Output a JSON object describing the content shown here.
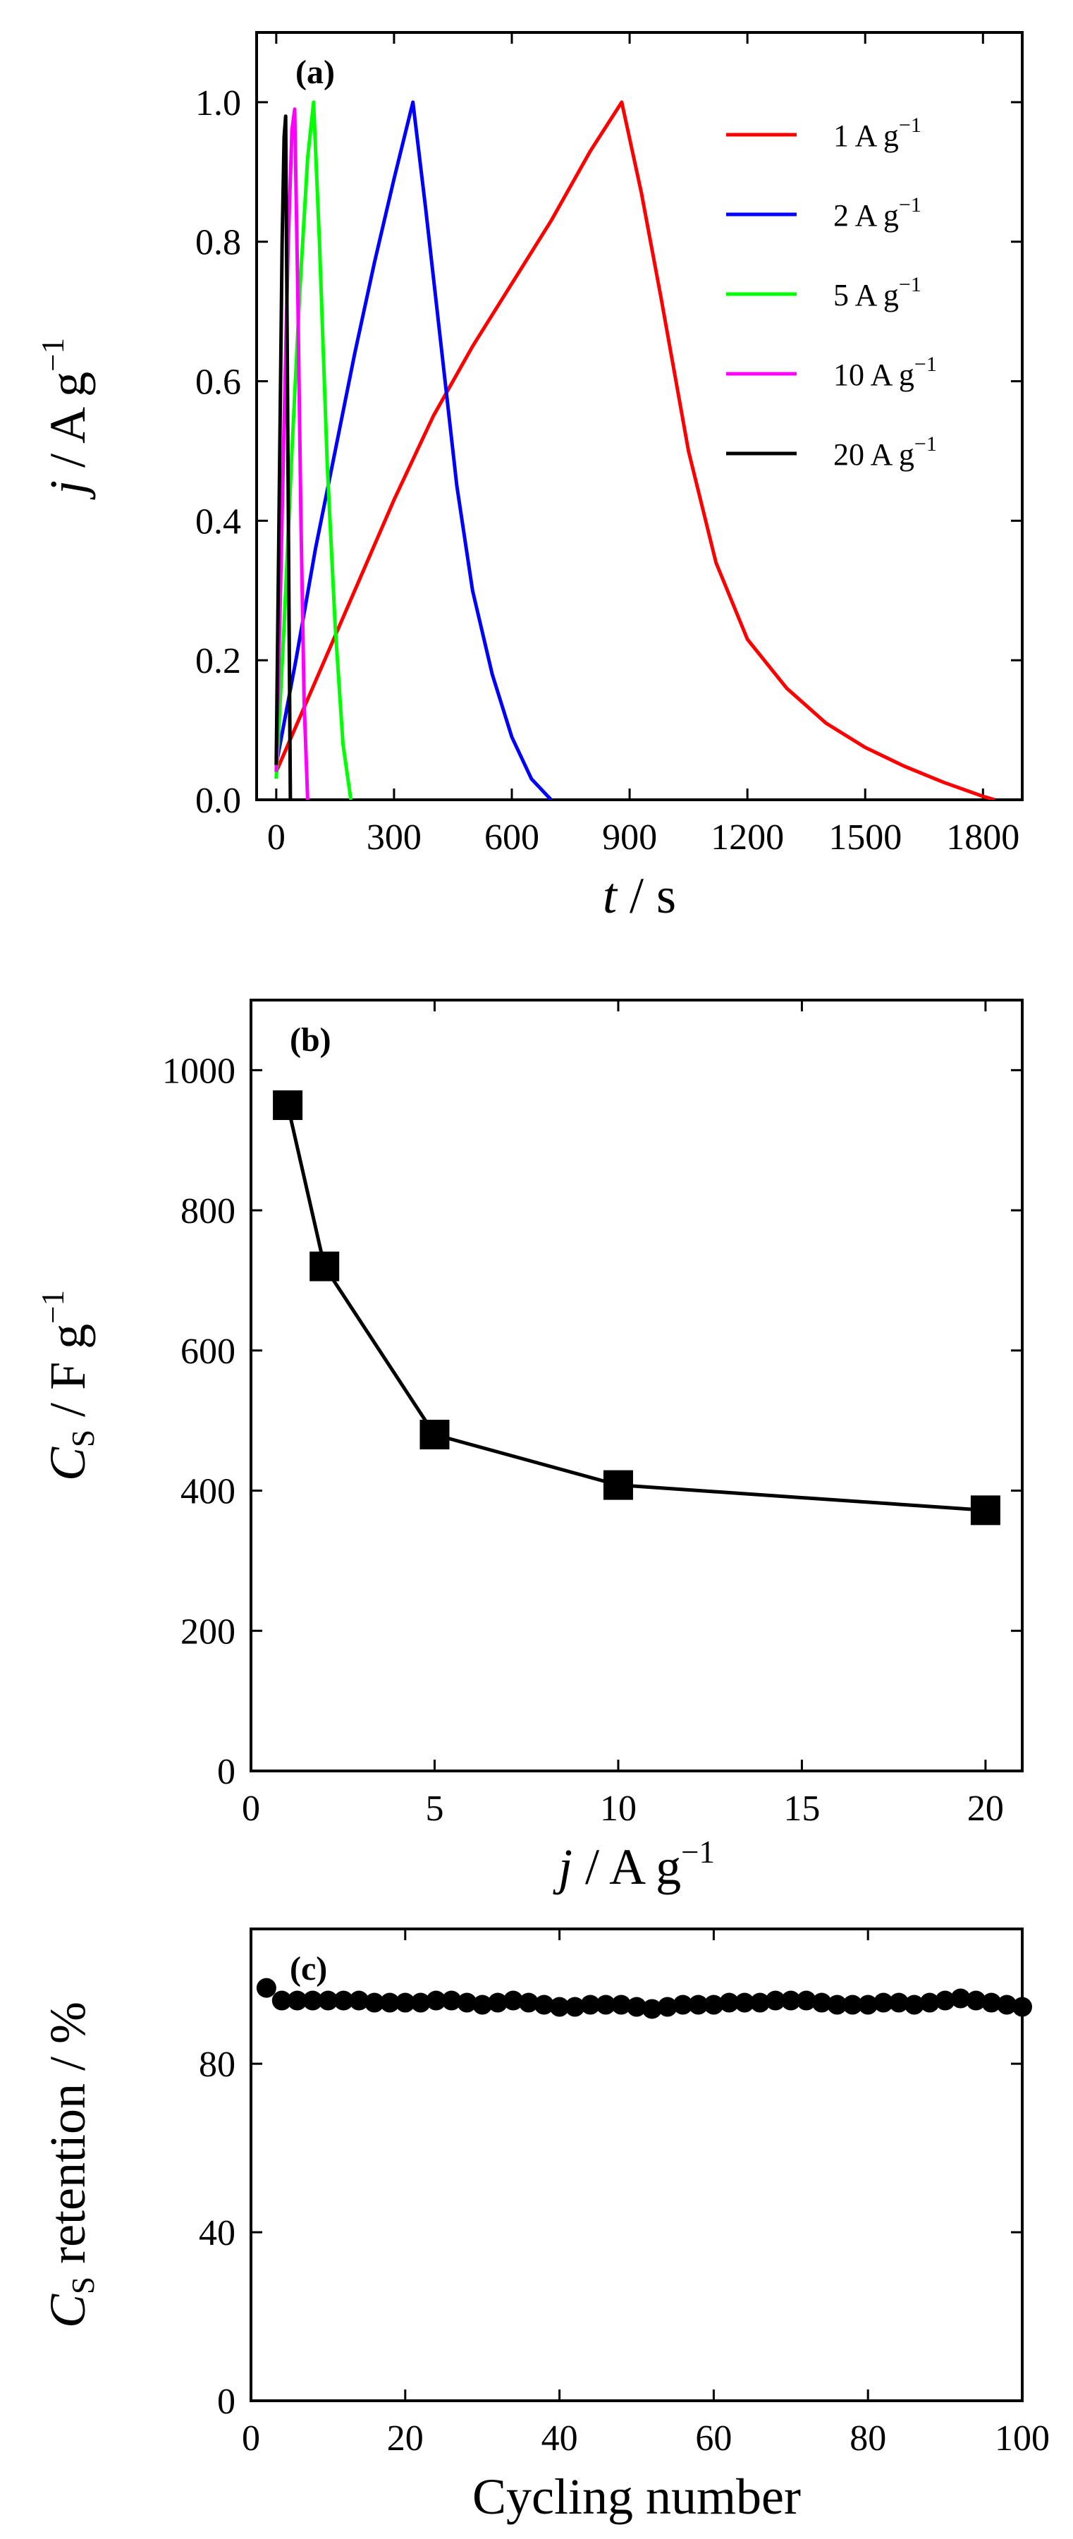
{
  "chart_data": [
    {
      "type": "line",
      "panel_label": "(a)",
      "xlabel": {
        "italic": "t",
        "rest": " / s"
      },
      "ylabel": {
        "italic": "j",
        "rest": " / A g",
        "sup": "−1"
      },
      "xlim": [
        -50,
        1900
      ],
      "ylim": [
        0,
        1.1
      ],
      "xticks": [
        0,
        300,
        600,
        900,
        1200,
        1500,
        1800
      ],
      "yticks": [
        0.0,
        0.2,
        0.4,
        0.6,
        0.8,
        1.0
      ],
      "ytick_labels": [
        "0.0",
        "0.2",
        "0.4",
        "0.6",
        "0.8",
        "1.0"
      ],
      "legend": "top-right",
      "series": [
        {
          "name": "1 A g",
          "name_sup": "−1",
          "color": "#ff0000",
          "x": [
            0,
            100,
            200,
            300,
            400,
            500,
            600,
            700,
            800,
            880,
            930,
            980,
            1050,
            1120,
            1200,
            1300,
            1400,
            1500,
            1600,
            1700,
            1800,
            1830
          ],
          "y": [
            0.04,
            0.17,
            0.3,
            0.43,
            0.55,
            0.65,
            0.74,
            0.83,
            0.93,
            1.0,
            0.87,
            0.72,
            0.5,
            0.34,
            0.23,
            0.16,
            0.11,
            0.075,
            0.048,
            0.025,
            0.005,
            0.0
          ]
        },
        {
          "name": "2 A g",
          "name_sup": "−1",
          "color": "#0000ff",
          "x": [
            0,
            50,
            100,
            150,
            200,
            250,
            300,
            348,
            380,
            420,
            460,
            500,
            550,
            600,
            650,
            700
          ],
          "y": [
            0.05,
            0.2,
            0.36,
            0.5,
            0.64,
            0.77,
            0.89,
            1.0,
            0.85,
            0.65,
            0.45,
            0.3,
            0.18,
            0.09,
            0.03,
            0.0
          ]
        },
        {
          "name": "5 A g",
          "name_sup": "−1",
          "color": "#00ff00",
          "x": [
            0,
            20,
            40,
            60,
            80,
            95,
            110,
            130,
            150,
            170,
            190
          ],
          "y": [
            0.03,
            0.25,
            0.5,
            0.73,
            0.92,
            1.0,
            0.8,
            0.48,
            0.25,
            0.08,
            0.0
          ]
        },
        {
          "name": "10 A g",
          "name_sup": "−1",
          "color": "#ff00ff",
          "x": [
            0,
            10,
            20,
            30,
            40,
            47,
            55,
            63,
            71,
            80
          ],
          "y": [
            0.04,
            0.28,
            0.54,
            0.79,
            0.96,
            0.99,
            0.72,
            0.4,
            0.14,
            0.0
          ]
        },
        {
          "name": "20 A g",
          "name_sup": "−1",
          "color": "#000000",
          "x": [
            0,
            5,
            10,
            15,
            20,
            24,
            28,
            32,
            36
          ],
          "y": [
            0.05,
            0.3,
            0.55,
            0.8,
            0.95,
            0.98,
            0.65,
            0.3,
            0.0
          ]
        }
      ]
    },
    {
      "type": "line",
      "panel_label": "(b)",
      "xlabel": {
        "italic": "j",
        "rest": " / A g",
        "sup": "−1"
      },
      "ylabel": {
        "italic": "C",
        "sub": "S",
        "rest": " / F g",
        "sup": "−1"
      },
      "xlim": [
        0,
        21
      ],
      "ylim": [
        0,
        1100
      ],
      "xticks": [
        0,
        5,
        10,
        15,
        20
      ],
      "yticks": [
        0,
        200,
        400,
        600,
        800,
        1000
      ],
      "marker": "square",
      "color": "#000000",
      "x": [
        1,
        2,
        5,
        10,
        20
      ],
      "y": [
        950,
        720,
        480,
        408,
        372
      ]
    },
    {
      "type": "scatter",
      "panel_label": "(c)",
      "xlabel": {
        "rest": "Cycling number"
      },
      "ylabel": {
        "italic": "C",
        "sub": "S",
        "rest": " retention / %"
      },
      "xlim": [
        0,
        100
      ],
      "ylim": [
        0,
        112
      ],
      "xticks": [
        0,
        20,
        40,
        60,
        80,
        100
      ],
      "yticks": [
        0,
        40,
        80
      ],
      "marker": "circle",
      "color": "#000000",
      "x": [
        2,
        4,
        6,
        8,
        10,
        12,
        14,
        16,
        18,
        20,
        22,
        24,
        26,
        28,
        30,
        32,
        34,
        36,
        38,
        40,
        42,
        44,
        46,
        48,
        50,
        52,
        54,
        56,
        58,
        60,
        62,
        64,
        66,
        68,
        70,
        72,
        74,
        76,
        78,
        80,
        82,
        84,
        86,
        88,
        90,
        92,
        94,
        96,
        98,
        100
      ],
      "y": [
        98,
        95,
        95,
        95,
        95,
        95,
        95,
        94.5,
        94.5,
        94.5,
        94.5,
        95,
        95,
        94.5,
        94,
        94.5,
        95,
        94.5,
        94,
        93.5,
        93.5,
        94,
        94,
        94,
        93.5,
        93,
        93.5,
        94,
        94,
        94,
        94.5,
        94.5,
        94.5,
        95,
        95,
        95,
        94.5,
        94,
        94,
        94,
        94.5,
        94.5,
        94,
        94.5,
        95,
        95.5,
        95,
        94.5,
        94,
        93.5
      ]
    }
  ]
}
